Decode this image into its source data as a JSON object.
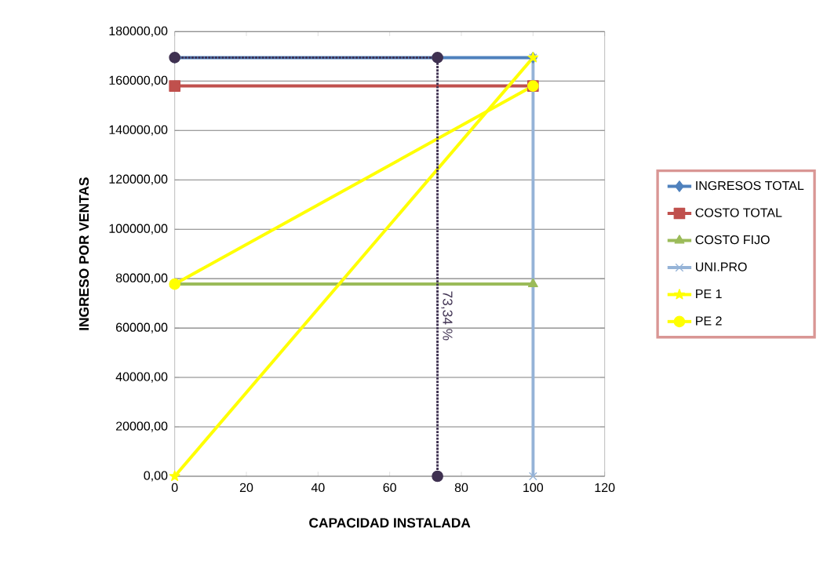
{
  "chart_data": {
    "type": "line",
    "xlabel": "CAPACIDAD INSTALADA",
    "ylabel": "INGRESO POR VENTAS",
    "xlim": [
      0,
      120
    ],
    "xticks": [
      0,
      20,
      40,
      60,
      80,
      100,
      120
    ],
    "ylim": [
      0,
      180000
    ],
    "yticks": [
      {
        "value": 0,
        "label": "0,00"
      },
      {
        "value": 20000,
        "label": "20000,00"
      },
      {
        "value": 40000,
        "label": "40000,00"
      },
      {
        "value": 60000,
        "label": "60000,00"
      },
      {
        "value": 80000,
        "label": "80000,00"
      },
      {
        "value": 100000,
        "label": "100000,00"
      },
      {
        "value": 120000,
        "label": "120000,00"
      },
      {
        "value": 140000,
        "label": "140000,00"
      },
      {
        "value": 160000,
        "label": "160000,00"
      },
      {
        "value": 180000,
        "label": "180000,00"
      }
    ],
    "grid": "y",
    "legend": "right",
    "line_style": "solid",
    "series": [
      {
        "name": "INGRESOS TOTAL",
        "color": "#4f81bd",
        "marker": "diamond",
        "x": [
          0,
          100
        ],
        "values": [
          169500,
          169500
        ]
      },
      {
        "name": "COSTO TOTAL",
        "color": "#c0504d",
        "marker": "square",
        "x": [
          0,
          100
        ],
        "values": [
          158000,
          158000
        ]
      },
      {
        "name": "COSTO FIJO",
        "color": "#9bbb59",
        "marker": "triangle",
        "x": [
          0,
          100
        ],
        "values": [
          77800,
          77800
        ]
      },
      {
        "name": "UNI.PRO",
        "color": "#95b3d7",
        "marker": "cross",
        "x": [
          100,
          100
        ],
        "values": [
          0,
          169500
        ]
      },
      {
        "name": "PE 1",
        "color": "#ffff00",
        "marker": "star",
        "x": [
          0,
          100
        ],
        "values": [
          0,
          169500
        ]
      },
      {
        "name": "PE 2",
        "color": "#ffff00",
        "marker": "circle",
        "x": [
          0,
          100
        ],
        "values": [
          77800,
          158000
        ]
      },
      {
        "color": "#3f3151",
        "marker": "circle",
        "line_style": "dotted",
        "x": [
          0,
          73.34,
          73.34
        ],
        "values": [
          169500,
          169500,
          0
        ]
      }
    ],
    "annotations": [
      {
        "text": "73,34 %",
        "x": 73.34,
        "y": 65000
      }
    ]
  }
}
